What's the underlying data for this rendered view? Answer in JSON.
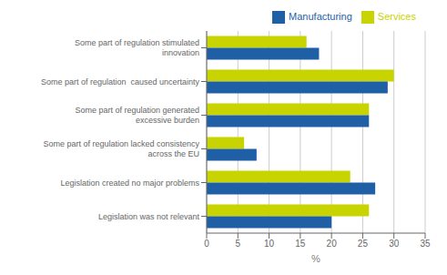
{
  "chart_data": {
    "type": "bar",
    "orientation": "horizontal",
    "categories": [
      "Some part of regulation stimulated\ninnovation",
      "Some part of regulation  caused uncertainty",
      "Some part of regulation generated\nexcessive burden",
      "Some part of regulation lacked consistency\nacross the EU",
      "Legislation created no major problems",
      "Legislation was not relevant"
    ],
    "series": [
      {
        "name": "Services",
        "color": "#c8d400",
        "values": [
          16,
          30,
          26,
          6,
          23,
          26
        ]
      },
      {
        "name": "Manufacturing",
        "color": "#1f5fa6",
        "values": [
          18,
          29,
          26,
          8,
          27,
          20
        ]
      }
    ],
    "xlabel": "%",
    "xlim": [
      0,
      35
    ],
    "xticks": [
      0,
      5,
      10,
      15,
      20,
      25,
      30,
      35
    ],
    "grid": true,
    "legend": "upper right"
  }
}
